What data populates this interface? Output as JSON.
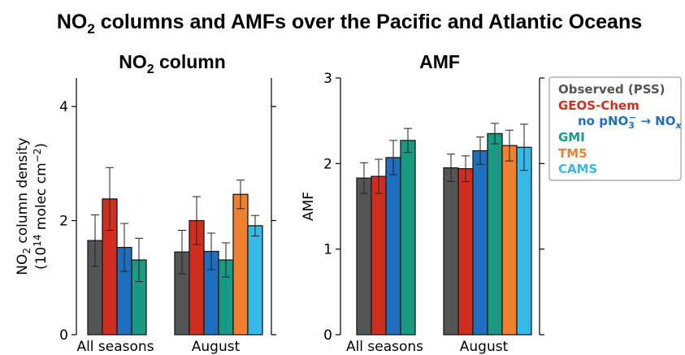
{
  "figure": {
    "title": {
      "pre": "NO",
      "sub": "2",
      "post": " columns and AMFs over the Pacific and Atlantic Oceans"
    }
  },
  "colors": {
    "Observed (PSS)": "#555555",
    "GEOS-Chem": "#cf2f20",
    "no pNO3- -> NOx": "#1f6fbf",
    "GMI": "#1a9a82",
    "TM5": "#f08030",
    "CAMS": "#36b9e6"
  },
  "legend": {
    "items": [
      {
        "label": "Observed (PSS)",
        "color": "#555555"
      },
      {
        "label": "GEOS-Chem",
        "color": "#cf2f20"
      },
      {
        "label_parts": [
          "no pNO",
          "3",
          "−",
          " → NO",
          "x"
        ],
        "color": "#1f6fbf"
      },
      {
        "label": "GMI",
        "color": "#1a9a82"
      },
      {
        "label": "TM5",
        "color": "#f08030"
      },
      {
        "label": "CAMS",
        "color": "#36b9e6"
      }
    ]
  },
  "chart_data": [
    {
      "type": "bar",
      "title": {
        "pre": "NO",
        "sub": "2",
        "post": " column"
      },
      "ylabel": {
        "line1_pre": "NO",
        "line1_sub": "2",
        "line1_post": " column density",
        "line2_pre": "(10",
        "line2_sup": "14",
        "line2_mid": " molec cm",
        "line2_sup2": "−2",
        "line2_post": ")"
      },
      "ylim": [
        0,
        4.5
      ],
      "yticks": [
        0,
        2,
        4
      ],
      "categories": [
        "All seasons",
        "August"
      ],
      "series": [
        {
          "name": "Observed (PSS)",
          "values": [
            1.65,
            1.45
          ],
          "err": [
            0.45,
            0.38
          ]
        },
        {
          "name": "GEOS-Chem",
          "values": [
            2.38,
            2.0
          ],
          "err": [
            0.55,
            0.42
          ]
        },
        {
          "name": "no pNO3- -> NOx",
          "values": [
            1.53,
            1.46
          ],
          "err": [
            0.42,
            0.32
          ]
        },
        {
          "name": "GMI",
          "values": [
            1.31,
            1.31
          ],
          "err": [
            0.38,
            0.3
          ]
        },
        {
          "name": "TM5",
          "values": [
            null,
            2.46
          ],
          "err": [
            null,
            0.25
          ]
        },
        {
          "name": "CAMS",
          "values": [
            null,
            1.91
          ],
          "err": [
            null,
            0.18
          ]
        }
      ]
    },
    {
      "type": "bar",
      "title": {
        "pre": "AMF",
        "sub": "",
        "post": ""
      },
      "ylabel": {
        "line1_pre": "AMF",
        "line1_sub": "",
        "line1_post": ""
      },
      "ylim": [
        0,
        3.0
      ],
      "yticks": [
        0,
        1,
        2,
        3
      ],
      "categories": [
        "All seasons",
        "August"
      ],
      "series": [
        {
          "name": "Observed (PSS)",
          "values": [
            1.83,
            1.95
          ],
          "err": [
            0.18,
            0.16
          ]
        },
        {
          "name": "GEOS-Chem",
          "values": [
            1.85,
            1.94
          ],
          "err": [
            0.2,
            0.15
          ]
        },
        {
          "name": "no pNO3- -> NOx",
          "values": [
            2.07,
            2.15
          ],
          "err": [
            0.2,
            0.16
          ]
        },
        {
          "name": "GMI",
          "values": [
            2.27,
            2.35
          ],
          "err": [
            0.14,
            0.12
          ]
        },
        {
          "name": "TM5",
          "values": [
            null,
            2.21
          ],
          "err": [
            null,
            0.18
          ]
        },
        {
          "name": "CAMS",
          "values": [
            null,
            2.19
          ],
          "err": [
            null,
            0.27
          ]
        }
      ]
    }
  ]
}
